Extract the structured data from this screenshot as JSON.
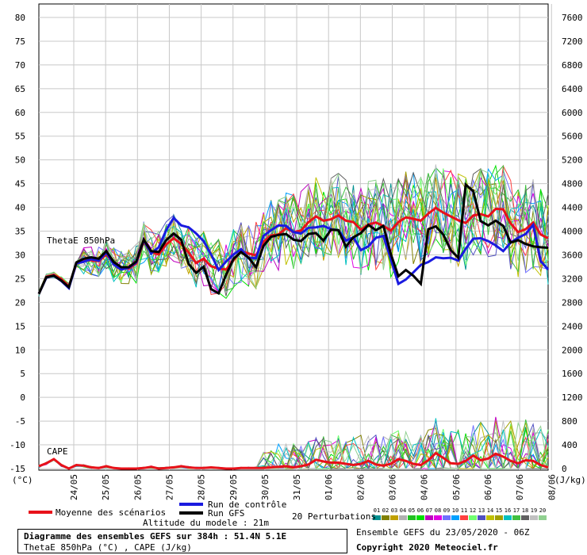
{
  "chart_data": {
    "type": "line",
    "title": "Diagramme des ensembles GEFS sur 384h : 51.4N 5.1E",
    "subtitle": "ThetaE 850hPa (°C) , CAPE (J/kg)",
    "left_axis": {
      "ticks": [
        80,
        75,
        70,
        65,
        60,
        55,
        50,
        45,
        40,
        35,
        30,
        25,
        20,
        15,
        10,
        5,
        0,
        -5,
        -10,
        -15
      ],
      "unit": "(°C)",
      "ylim": [
        -15,
        80
      ]
    },
    "right_axis": {
      "ticks": [
        7600,
        7200,
        6800,
        6400,
        6000,
        5600,
        5200,
        4800,
        4400,
        4000,
        3600,
        3200,
        2800,
        2400,
        2000,
        1600,
        1200,
        800,
        400,
        0
      ],
      "unit": "(J/kg)"
    },
    "x_tick_labels": [
      "24/05",
      "25/05",
      "26/05",
      "27/05",
      "28/05",
      "29/05",
      "30/05",
      "31/05",
      "01/06",
      "02/06",
      "03/06",
      "04/06",
      "05/06",
      "06/06",
      "07/06",
      "08/06"
    ],
    "annotations": [
      "ThetaE 850hPa",
      "CAPE"
    ],
    "grid": true,
    "series_thetae": [
      {
        "name": "Moyenne des scénarios",
        "color": "#e8111a",
        "values": [
          21.8,
          25.4,
          25.8,
          24.9,
          23.4,
          28.1,
          28.8,
          28.9,
          28.7,
          30.1,
          28.2,
          27.2,
          27.1,
          28.2,
          32.8,
          30.6,
          30.1,
          32.2,
          33.5,
          32.3,
          30.5,
          28.3,
          29.2,
          27.6,
          27.1,
          26.9,
          28.9,
          30.8,
          30.3,
          29.9,
          32.8,
          34.1,
          34.3,
          35.6,
          34.8,
          35.1,
          36.9,
          38.1,
          37.2,
          37.5,
          38.3,
          37.2,
          36.9,
          35.3,
          36.4,
          36.8,
          36.1,
          35.1,
          36.9,
          37.9,
          37.6,
          37.2,
          38.7,
          39.9,
          38.9,
          38.1,
          37.3,
          36.7,
          38.3,
          38.6,
          38.1,
          39.7,
          39.6,
          36.6,
          34.8,
          35.4,
          36.8,
          34.3,
          33.5
        ]
      },
      {
        "name": "Run de contrôle",
        "color": "#1a1ae0",
        "values": [
          21.8,
          25.2,
          25.6,
          24.5,
          23.0,
          28.2,
          28.6,
          29.1,
          28.8,
          30.5,
          28.0,
          26.9,
          27.3,
          28.4,
          33.1,
          30.3,
          31.6,
          35.2,
          37.8,
          36.2,
          35.8,
          34.5,
          32.9,
          30.1,
          26.8,
          28.6,
          30.1,
          31.2,
          29.4,
          29.3,
          34.0,
          35.2,
          36.2,
          36.1,
          34.8,
          34.5,
          35.7,
          35.8,
          36.1,
          35.4,
          35.2,
          33.0,
          33.7,
          31.0,
          31.8,
          33.6,
          34.0,
          29.1,
          23.9,
          24.8,
          26.3,
          27.9,
          28.5,
          29.5,
          29.3,
          29.4,
          28.8,
          31.3,
          33.4,
          33.5,
          32.9,
          32.0,
          30.8,
          32.6,
          33.6,
          34.4,
          36.3,
          28.7,
          26.9
        ]
      },
      {
        "name": "Run GFS",
        "color": "#000000",
        "values": [
          21.8,
          25.3,
          25.6,
          24.6,
          23.2,
          28.4,
          29.2,
          29.5,
          29.2,
          30.8,
          28.5,
          27.4,
          27.4,
          28.6,
          33.2,
          30.8,
          30.6,
          33.1,
          34.5,
          33.2,
          28.1,
          26.2,
          27.5,
          22.8,
          21.9,
          25.8,
          29.2,
          30.6,
          29.4,
          27.4,
          31.9,
          33.8,
          34.2,
          34.4,
          33.2,
          32.9,
          34.4,
          34.6,
          33.0,
          35.3,
          35.2,
          31.7,
          33.7,
          34.6,
          36.3,
          35.2,
          36.1,
          30.2,
          25.5,
          26.8,
          25.6,
          23.9,
          35.4,
          36.0,
          34.3,
          31.0,
          29.4,
          44.8,
          43.4,
          37.1,
          36.2,
          37.2,
          36.1,
          32.6,
          33.1,
          32.3,
          31.8,
          31.6,
          31.5
        ]
      }
    ],
    "series_cape_mean": {
      "name": "Moyenne des scénarios",
      "values": [
        40,
        90,
        160,
        60,
        0,
        60,
        50,
        20,
        10,
        40,
        10,
        0,
        0,
        0,
        10,
        30,
        0,
        10,
        20,
        40,
        20,
        10,
        10,
        20,
        10,
        0,
        0,
        10,
        10,
        10,
        10,
        20,
        30,
        40,
        20,
        40,
        70,
        150,
        120,
        100,
        100,
        80,
        60,
        80,
        130,
        70,
        50,
        80,
        160,
        130,
        80,
        60,
        140,
        260,
        180,
        90,
        80,
        130,
        220,
        140,
        170,
        250,
        200,
        130,
        90,
        140,
        130,
        60,
        20
      ]
    },
    "x_footer_labels": {
      "altitude": "Altitude du modele : 21m",
      "perturbations": "20 Perturbations",
      "member_numbers": [
        "01",
        "02",
        "03",
        "04",
        "05",
        "06",
        "07",
        "08",
        "09",
        "10",
        "11",
        "12",
        "13",
        "14",
        "15",
        "16",
        "17",
        "18",
        "19",
        "20"
      ]
    }
  },
  "legend": {
    "mean": "Moyenne des scénarios",
    "control": "Run de contrôle",
    "gfs": "Run GFS"
  },
  "footer": {
    "ensemble": "Ensemble GEFS du 23/05/2020 - 06Z",
    "copyright": "Copyright 2020 Meteociel.fr"
  },
  "member_colors": [
    "#009090",
    "#808000",
    "#c0a000",
    "#b0b0b0",
    "#20c020",
    "#00e000",
    "#c000c0",
    "#e000e0",
    "#7070ff",
    "#00a0ff",
    "#ff4040",
    "#70ff70",
    "#5050c0",
    "#c0c000",
    "#a0a000",
    "#00c0c0",
    "#40c040",
    "#606060",
    "#c0c0c0",
    "#90d090"
  ]
}
